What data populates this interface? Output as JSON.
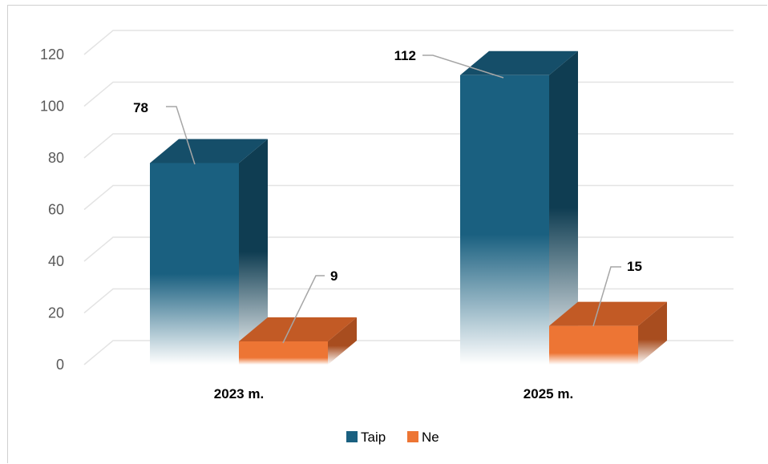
{
  "chart_data": {
    "type": "bar",
    "title": "",
    "categories": [
      "2023 m.",
      "2025 m."
    ],
    "series": [
      {
        "name": "Taip",
        "values": [
          78,
          112
        ],
        "color": "#1a6080",
        "side_color": "#0f3d52",
        "top_color": "#154e69"
      },
      {
        "name": "Ne",
        "values": [
          9,
          15
        ],
        "color": "#ed7534",
        "side_color": "#a84d1f",
        "top_color": "#c25a25"
      }
    ],
    "y_ticks": [
      "0",
      "20",
      "40",
      "60",
      "80",
      "100",
      "120"
    ],
    "ylim": [
      0,
      120
    ],
    "grid": true,
    "legend_position": "bottom",
    "data_labels": [
      "78",
      "112",
      "9",
      "15"
    ]
  }
}
